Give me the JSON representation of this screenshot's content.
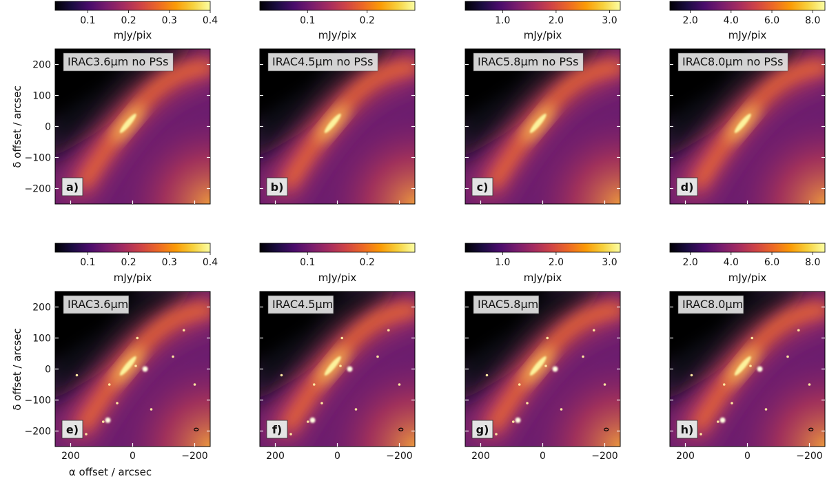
{
  "figure": {
    "ylabel": "δ offset / arcsec",
    "xlabel": "α offset / arcsec",
    "colorbar_label": "mJy/pix"
  },
  "colors": {
    "colormap": [
      "#000004",
      "#1b0c41",
      "#4a0c6b",
      "#781c6d",
      "#a52c60",
      "#cf4446",
      "#ed6925",
      "#fb9b06",
      "#f7d13d",
      "#fcffa4"
    ],
    "frame": "#000000",
    "tick_on_image": "#ffffff",
    "label_box": "#e4e4e4"
  },
  "chart_data": [
    {
      "type": "heatmap",
      "panel": "a",
      "title": "IRAC3.6μm no PSs",
      "letter": "a)",
      "row": 1,
      "col": 1,
      "colorbar": {
        "ticks": [
          "0.1",
          "0.2",
          "0.3",
          "0.4"
        ],
        "tick_values": [
          0.1,
          0.2,
          0.3,
          0.4
        ],
        "range": [
          0.02,
          0.4
        ]
      },
      "x_ticks": [
        "200",
        "0",
        "−200"
      ],
      "x_tick_values": [
        200,
        0,
        -200
      ],
      "y_ticks": [
        "200",
        "100",
        "0",
        "−100",
        "−200"
      ],
      "y_tick_values": [
        200,
        100,
        0,
        -100,
        -200
      ],
      "xlim": [
        250,
        -250
      ],
      "ylim": [
        -250,
        250
      ],
      "point_sources": false
    },
    {
      "type": "heatmap",
      "panel": "b",
      "title": "IRAC4.5μm no PSs",
      "letter": "b)",
      "row": 1,
      "col": 2,
      "colorbar": {
        "ticks": [
          "0.1",
          "0.2"
        ],
        "tick_values": [
          0.1,
          0.2
        ],
        "range": [
          0.02,
          0.28
        ]
      },
      "x_ticks": [
        "200",
        "0",
        "−200"
      ],
      "x_tick_values": [
        200,
        0,
        -200
      ],
      "y_ticks": [
        "200",
        "100",
        "0",
        "−100",
        "−200"
      ],
      "y_tick_values": [
        200,
        100,
        0,
        -100,
        -200
      ],
      "xlim": [
        250,
        -250
      ],
      "ylim": [
        -250,
        250
      ],
      "point_sources": false
    },
    {
      "type": "heatmap",
      "panel": "c",
      "title": "IRAC5.8μm no PSs",
      "letter": "c)",
      "row": 1,
      "col": 3,
      "colorbar": {
        "ticks": [
          "1.0",
          "2.0",
          "3.0"
        ],
        "tick_values": [
          1.0,
          2.0,
          3.0
        ],
        "range": [
          0.3,
          3.2
        ]
      },
      "x_ticks": [
        "200",
        "0",
        "−200"
      ],
      "x_tick_values": [
        200,
        0,
        -200
      ],
      "y_ticks": [
        "200",
        "100",
        "0",
        "−100",
        "−200"
      ],
      "y_tick_values": [
        200,
        100,
        0,
        -100,
        -200
      ],
      "xlim": [
        250,
        -250
      ],
      "ylim": [
        -250,
        250
      ],
      "point_sources": false
    },
    {
      "type": "heatmap",
      "panel": "d",
      "title": "IRAC8.0μm no PSs",
      "letter": "d)",
      "row": 1,
      "col": 4,
      "colorbar": {
        "ticks": [
          "2.0",
          "4.0",
          "6.0",
          "8.0"
        ],
        "tick_values": [
          2.0,
          4.0,
          6.0,
          8.0
        ],
        "range": [
          1.0,
          8.6
        ]
      },
      "x_ticks": [
        "200",
        "0",
        "−200"
      ],
      "x_tick_values": [
        200,
        0,
        -200
      ],
      "y_ticks": [
        "200",
        "100",
        "0",
        "−100",
        "−200"
      ],
      "y_tick_values": [
        200,
        100,
        0,
        -100,
        -200
      ],
      "xlim": [
        250,
        -250
      ],
      "ylim": [
        -250,
        250
      ],
      "point_sources": false
    },
    {
      "type": "heatmap",
      "panel": "e",
      "title": "IRAC3.6μm",
      "letter": "e)",
      "row": 2,
      "col": 1,
      "colorbar": {
        "ticks": [
          "0.1",
          "0.2",
          "0.3",
          "0.4"
        ],
        "tick_values": [
          0.1,
          0.2,
          0.3,
          0.4
        ],
        "range": [
          0.02,
          0.4
        ]
      },
      "x_ticks": [
        "200",
        "0",
        "−200"
      ],
      "x_tick_values": [
        200,
        0,
        -200
      ],
      "y_ticks": [
        "200",
        "100",
        "0",
        "−100",
        "−200"
      ],
      "y_tick_values": [
        200,
        100,
        0,
        -100,
        -200
      ],
      "xlim": [
        250,
        -250
      ],
      "ylim": [
        -250,
        250
      ],
      "point_sources": true
    },
    {
      "type": "heatmap",
      "panel": "f",
      "title": "IRAC4.5μm",
      "letter": "f)",
      "row": 2,
      "col": 2,
      "colorbar": {
        "ticks": [
          "0.1",
          "0.2"
        ],
        "tick_values": [
          0.1,
          0.2
        ],
        "range": [
          0.02,
          0.28
        ]
      },
      "x_ticks": [
        "200",
        "0",
        "−200"
      ],
      "x_tick_values": [
        200,
        0,
        -200
      ],
      "y_ticks": [
        "200",
        "100",
        "0",
        "−100",
        "−200"
      ],
      "y_tick_values": [
        200,
        100,
        0,
        -100,
        -200
      ],
      "xlim": [
        250,
        -250
      ],
      "ylim": [
        -250,
        250
      ],
      "point_sources": true
    },
    {
      "type": "heatmap",
      "panel": "g",
      "title": "IRAC5.8μm",
      "letter": "g)",
      "row": 2,
      "col": 3,
      "colorbar": {
        "ticks": [
          "1.0",
          "2.0",
          "3.0"
        ],
        "tick_values": [
          1.0,
          2.0,
          3.0
        ],
        "range": [
          0.3,
          3.2
        ]
      },
      "x_ticks": [
        "200",
        "0",
        "−200"
      ],
      "x_tick_values": [
        200,
        0,
        -200
      ],
      "y_ticks": [
        "200",
        "100",
        "0",
        "−100",
        "−200"
      ],
      "y_tick_values": [
        200,
        100,
        0,
        -100,
        -200
      ],
      "xlim": [
        250,
        -250
      ],
      "ylim": [
        -250,
        250
      ],
      "point_sources": true
    },
    {
      "type": "heatmap",
      "panel": "h",
      "title": "IRAC8.0μm",
      "letter": "h)",
      "row": 2,
      "col": 4,
      "colorbar": {
        "ticks": [
          "2.0",
          "4.0",
          "6.0",
          "8.0"
        ],
        "tick_values": [
          2.0,
          4.0,
          6.0,
          8.0
        ],
        "range": [
          1.0,
          8.6
        ]
      },
      "x_ticks": [
        "200",
        "0",
        "−200"
      ],
      "x_tick_values": [
        200,
        0,
        -200
      ],
      "y_ticks": [
        "200",
        "100",
        "0",
        "−100",
        "−200"
      ],
      "y_tick_values": [
        200,
        100,
        0,
        -100,
        -200
      ],
      "xlim": [
        250,
        -250
      ],
      "ylim": [
        -250,
        250
      ],
      "point_sources": true
    }
  ]
}
